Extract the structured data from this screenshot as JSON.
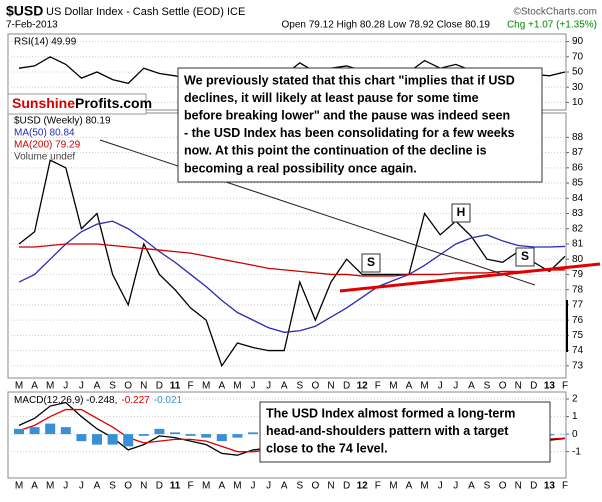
{
  "header": {
    "title": "$USD",
    "subtitle": "US Dollar Index - Cash Settle (EOD) ICE",
    "credit": "©StockCharts.com",
    "date": "7-Feb-2013",
    "ohlc": "Open 79.12 High 80.28 Low 78.92 Close 80.19",
    "change": "Chg +1.07 (+1.35%)"
  },
  "logo": [
    "Sunshine",
    "Profits.com"
  ],
  "chart_data": [
    {
      "type": "line",
      "grid": true,
      "series": [
        {
          "name": "RSI(14) 49.99",
          "color": "#000000",
          "values": [
            55,
            58,
            70,
            60,
            42,
            50,
            40,
            35,
            55,
            48,
            45,
            40,
            38,
            32,
            42,
            45,
            44,
            46,
            62,
            50,
            55,
            58,
            52,
            50,
            50,
            50,
            65,
            55,
            60,
            52,
            45,
            45,
            52,
            47,
            45,
            49.99
          ]
        }
      ],
      "ylim": [
        0,
        100
      ],
      "yticks": [
        10,
        30,
        50,
        70,
        90
      ]
    },
    {
      "type": "line",
      "grid": true,
      "categories": [
        "M",
        "A",
        "M",
        "J",
        "J",
        "A",
        "S",
        "O",
        "N",
        "D",
        "11",
        "F",
        "M",
        "A",
        "M",
        "J",
        "J",
        "A",
        "S",
        "O",
        "N",
        "D",
        "12",
        "F",
        "M",
        "A",
        "M",
        "J",
        "J",
        "A",
        "S",
        "O",
        "N",
        "D",
        "13",
        "F"
      ],
      "series": [
        {
          "name": "$USD (Weekly) 80.19",
          "color": "#000000",
          "values": [
            81,
            81.8,
            86.5,
            86,
            82,
            83,
            79,
            77,
            81,
            79,
            78,
            76.8,
            76,
            73,
            74.5,
            74.2,
            74,
            74,
            78.5,
            76,
            78.5,
            80,
            79,
            79,
            79,
            79,
            83,
            81.6,
            82.5,
            81.5,
            80,
            79.8,
            80.5,
            79.8,
            79.2,
            80.19
          ]
        },
        {
          "name": "MA(50) 80.84",
          "color": "#2b2bb0",
          "values": [
            78.5,
            79,
            80,
            81,
            81.8,
            82.3,
            82.5,
            82,
            81.3,
            80.5,
            79.8,
            79,
            78.2,
            77.3,
            76.5,
            76,
            75.5,
            75.2,
            75.3,
            75.6,
            76.2,
            76.8,
            77.5,
            78.2,
            78.6,
            79,
            79.6,
            80.3,
            81,
            81.4,
            81.6,
            81.2,
            80.9,
            80.8,
            80.8,
            80.84
          ]
        },
        {
          "name": "MA(200) 79.29",
          "color": "#cc0000",
          "values": [
            80.8,
            80.8,
            80.9,
            81,
            81,
            81,
            80.9,
            80.8,
            80.7,
            80.6,
            80.5,
            80.4,
            80.2,
            80,
            79.8,
            79.6,
            79.4,
            79.3,
            79.2,
            79.1,
            79,
            79,
            78.9,
            78.9,
            78.9,
            79,
            79,
            79,
            79.1,
            79.1,
            79.1,
            79.2,
            79.2,
            79.2,
            79.3,
            79.29
          ]
        }
      ],
      "ylim": [
        72.2,
        89.6
      ],
      "yticks": [
        73,
        74,
        75,
        76,
        77,
        78,
        79,
        80,
        81,
        82,
        83,
        84,
        85,
        86,
        87,
        88
      ],
      "annotations": [
        "Volume undef",
        "S",
        "H",
        "S"
      ],
      "comment": [
        "We previously stated that this chart \"implies that if USD",
        "declines, it will likely at least pause for some time",
        "before breaking lower\" and the pause was indeed seen",
        "- the USD Index has been consolidating for a few weeks",
        "now. At this point the continuation of the decline is",
        "becoming a real possibility once again."
      ]
    },
    {
      "type": "line",
      "grid": true,
      "categories": [
        "M",
        "A",
        "M",
        "J",
        "J",
        "A",
        "S",
        "O",
        "N",
        "D",
        "11",
        "F",
        "M",
        "A",
        "M",
        "J",
        "J",
        "A",
        "S",
        "O",
        "N",
        "D",
        "12",
        "F",
        "M",
        "A",
        "M",
        "J",
        "J",
        "A",
        "S",
        "O",
        "N",
        "D",
        "13",
        "F"
      ],
      "series": [
        {
          "name": "MACD(12,26,9) -0.248,",
          "color": "#000000",
          "values": [
            0.5,
            0.9,
            1.6,
            1.8,
            1.0,
            0.3,
            -0.2,
            -0.9,
            -0.6,
            -0.1,
            -0.2,
            -0.4,
            -0.6,
            -1.1,
            -1.2,
            -0.9,
            -0.8,
            -0.8,
            -0.1,
            0.2,
            0.3,
            0.5,
            0.6,
            0.3,
            0.1,
            0.0,
            0.5,
            0.8,
            0.9,
            0.5,
            0.0,
            -0.3,
            -0.2,
            -0.25,
            -0.35,
            -0.248
          ]
        },
        {
          "name": "-0.227",
          "color": "#dd0000",
          "values": [
            0.2,
            0.5,
            1.0,
            1.4,
            1.4,
            0.9,
            0.4,
            -0.2,
            -0.5,
            -0.4,
            -0.3,
            -0.3,
            -0.4,
            -0.7,
            -1.0,
            -1.0,
            -0.9,
            -0.8,
            -0.5,
            -0.1,
            0.1,
            0.3,
            0.5,
            0.45,
            0.3,
            0.15,
            0.25,
            0.5,
            0.7,
            0.65,
            0.35,
            0.0,
            -0.15,
            -0.2,
            -0.28,
            -0.227
          ]
        },
        {
          "name": "-0.021",
          "color": "#3b8fd6",
          "type": "bar",
          "values": [
            0.3,
            0.4,
            0.6,
            0.4,
            -0.4,
            -0.6,
            -0.6,
            -0.7,
            -0.1,
            0.3,
            0.1,
            -0.1,
            -0.2,
            -0.4,
            -0.2,
            0.1,
            0.1,
            0,
            0.4,
            0.3,
            0.2,
            0.2,
            0.1,
            -0.15,
            -0.2,
            -0.15,
            0.25,
            0.3,
            0.2,
            -0.15,
            -0.35,
            -0.3,
            -0.05,
            -0.05,
            -0.07,
            -0.021
          ]
        }
      ],
      "ylim": [
        -2.5,
        2.4
      ],
      "yticks": [
        -1,
        0,
        1,
        2
      ],
      "comment": [
        "The USD Index almost formed a long-term",
        "head-and-shoulders pattern with a target",
        "close to the 74 level."
      ]
    }
  ]
}
